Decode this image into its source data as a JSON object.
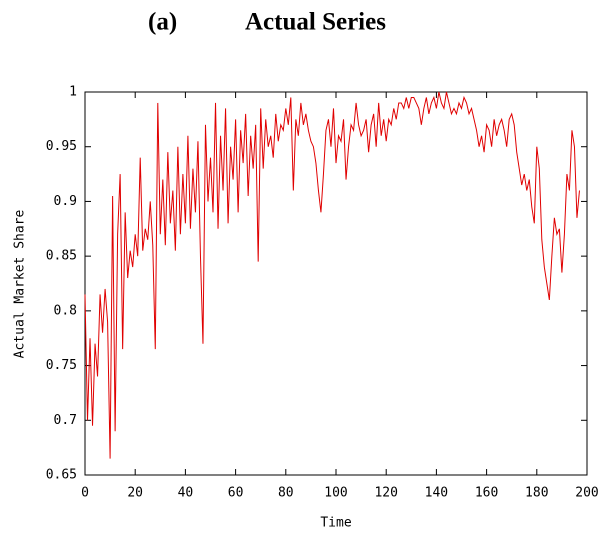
{
  "chart_data": {
    "type": "line",
    "title_label": "(a)",
    "title": "Actual Series",
    "x_label": "Time",
    "y_label": "Actual Market Share",
    "xlim": [
      0,
      200
    ],
    "xticks": [
      0,
      20,
      40,
      60,
      80,
      100,
      120,
      140,
      160,
      180,
      200
    ],
    "ylim": [
      0.65,
      1
    ],
    "yticks": [
      0.65,
      0.7,
      0.75,
      0.8,
      0.85,
      0.9,
      0.95,
      1
    ],
    "grid": false,
    "series": [
      {
        "name": "Actual",
        "color": "#e00000",
        "x": [
          0,
          1,
          2,
          3,
          4,
          5,
          6,
          7,
          8,
          9,
          10,
          11,
          12,
          13,
          14,
          15,
          16,
          17,
          18,
          19,
          20,
          21,
          22,
          23,
          24,
          25,
          26,
          27,
          28,
          29,
          30,
          31,
          32,
          33,
          34,
          35,
          36,
          37,
          38,
          39,
          40,
          41,
          42,
          43,
          44,
          45,
          46,
          47,
          48,
          49,
          50,
          51,
          52,
          53,
          54,
          55,
          56,
          57,
          58,
          59,
          60,
          61,
          62,
          63,
          64,
          65,
          66,
          67,
          68,
          69,
          70,
          71,
          72,
          73,
          74,
          75,
          76,
          77,
          78,
          79,
          80,
          81,
          82,
          83,
          84,
          85,
          86,
          87,
          88,
          89,
          90,
          91,
          92,
          93,
          94,
          95,
          96,
          97,
          98,
          99,
          100,
          101,
          102,
          103,
          104,
          105,
          106,
          107,
          108,
          109,
          110,
          111,
          112,
          113,
          114,
          115,
          116,
          117,
          118,
          119,
          120,
          121,
          122,
          123,
          124,
          125,
          126,
          127,
          128,
          129,
          130,
          131,
          132,
          133,
          134,
          135,
          136,
          137,
          138,
          139,
          140,
          141,
          142,
          143,
          144,
          145,
          146,
          147,
          148,
          149,
          150,
          151,
          152,
          153,
          154,
          155,
          156,
          157,
          158,
          159,
          160,
          161,
          162,
          163,
          164,
          165,
          166,
          167,
          168,
          169,
          170,
          171,
          172,
          173,
          174,
          175,
          176,
          177,
          178,
          179,
          180,
          181,
          182,
          183,
          184,
          185,
          186,
          187,
          188,
          189,
          190,
          191,
          192,
          193,
          194,
          195,
          196,
          197
        ],
        "values": [
          0.815,
          0.7,
          0.775,
          0.695,
          0.77,
          0.74,
          0.815,
          0.78,
          0.82,
          0.79,
          0.665,
          0.905,
          0.69,
          0.87,
          0.925,
          0.765,
          0.89,
          0.83,
          0.855,
          0.84,
          0.87,
          0.85,
          0.94,
          0.855,
          0.875,
          0.865,
          0.9,
          0.86,
          0.765,
          0.99,
          0.87,
          0.92,
          0.86,
          0.945,
          0.88,
          0.91,
          0.855,
          0.95,
          0.87,
          0.925,
          0.88,
          0.96,
          0.875,
          0.93,
          0.89,
          0.955,
          0.85,
          0.77,
          0.97,
          0.9,
          0.94,
          0.89,
          0.99,
          0.875,
          0.96,
          0.91,
          0.985,
          0.88,
          0.95,
          0.92,
          0.975,
          0.89,
          0.965,
          0.935,
          0.98,
          0.905,
          0.96,
          0.93,
          0.97,
          0.845,
          0.985,
          0.93,
          0.975,
          0.95,
          0.96,
          0.94,
          0.98,
          0.955,
          0.97,
          0.965,
          0.985,
          0.97,
          0.995,
          0.91,
          0.975,
          0.96,
          0.99,
          0.97,
          0.98,
          0.965,
          0.955,
          0.95,
          0.935,
          0.91,
          0.89,
          0.925,
          0.965,
          0.975,
          0.95,
          0.985,
          0.935,
          0.96,
          0.955,
          0.975,
          0.92,
          0.95,
          0.97,
          0.965,
          0.99,
          0.97,
          0.96,
          0.965,
          0.975,
          0.945,
          0.97,
          0.98,
          0.95,
          0.99,
          0.96,
          0.975,
          0.955,
          0.975,
          0.97,
          0.985,
          0.975,
          0.99,
          0.99,
          0.985,
          0.995,
          0.985,
          0.995,
          0.995,
          0.99,
          0.985,
          0.97,
          0.985,
          0.995,
          0.98,
          0.99,
          0.995,
          0.985,
          1.0,
          0.99,
          0.985,
          1.0,
          0.99,
          0.98,
          0.985,
          0.98,
          0.99,
          0.985,
          0.995,
          0.99,
          0.98,
          0.985,
          0.975,
          0.965,
          0.95,
          0.96,
          0.945,
          0.97,
          0.965,
          0.95,
          0.975,
          0.96,
          0.97,
          0.975,
          0.965,
          0.95,
          0.975,
          0.98,
          0.97,
          0.945,
          0.93,
          0.915,
          0.925,
          0.91,
          0.92,
          0.895,
          0.88,
          0.95,
          0.93,
          0.865,
          0.84,
          0.825,
          0.81,
          0.85,
          0.885,
          0.87,
          0.875,
          0.835,
          0.87,
          0.925,
          0.91,
          0.965,
          0.95,
          0.885,
          0.91
        ]
      }
    ]
  }
}
